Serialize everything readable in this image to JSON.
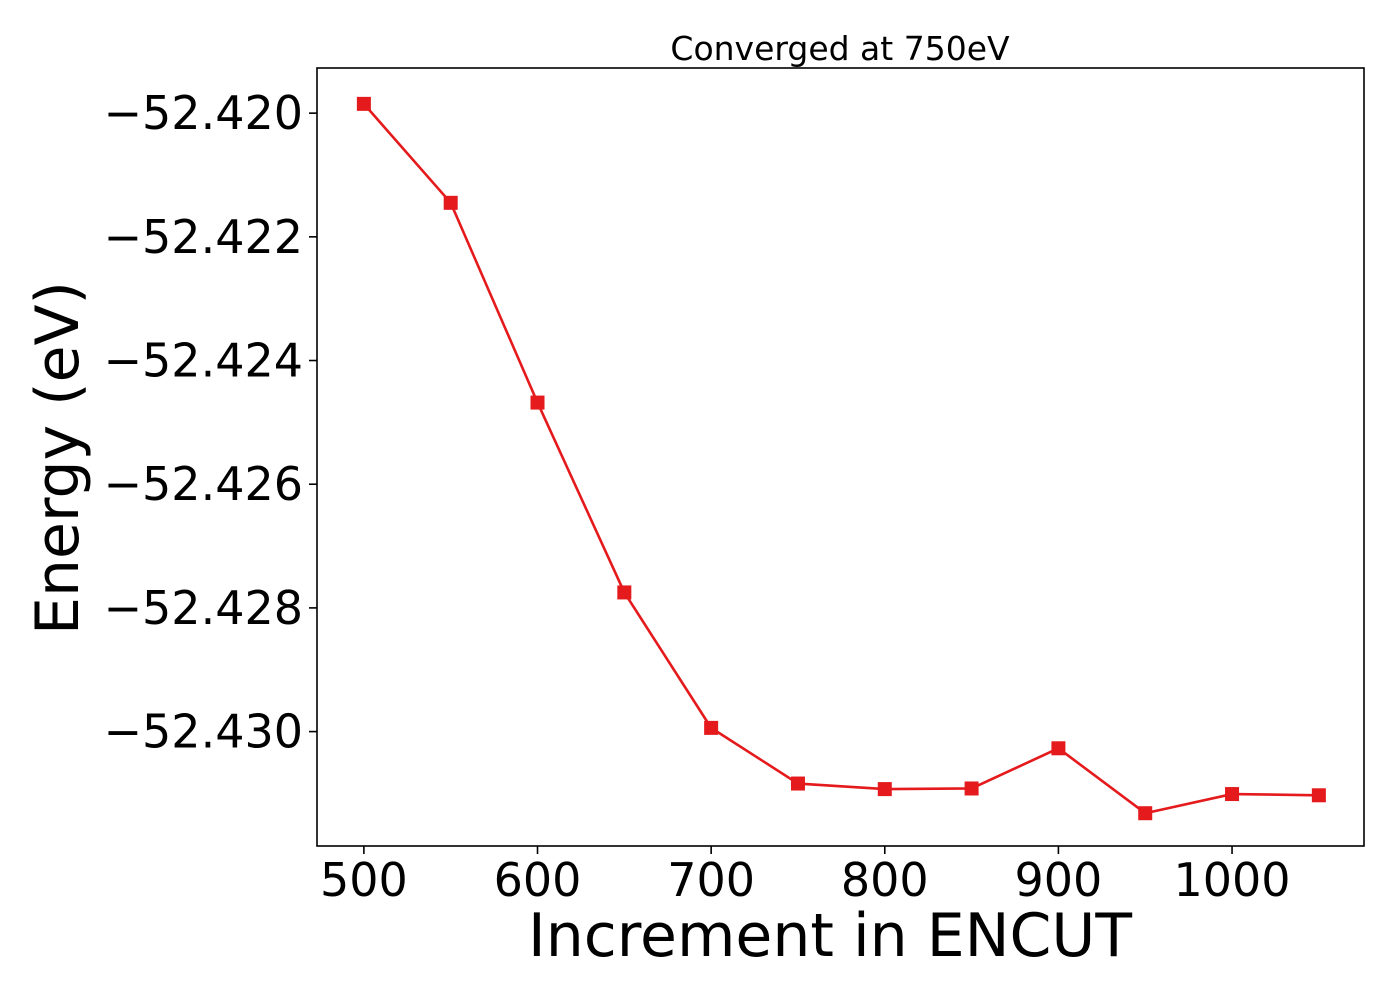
{
  "chart_data": {
    "type": "line",
    "title": "Converged at 750eV",
    "xlabel": "Increment in ENCUT",
    "ylabel": "Energy (eV)",
    "x": [
      500,
      550,
      600,
      650,
      700,
      750,
      800,
      850,
      900,
      950,
      1000,
      1050
    ],
    "series": [
      {
        "color": "#e41a1c",
        "marker": "square",
        "values": [
          -52.41985,
          -52.42145,
          -52.42468,
          -52.42775,
          -52.42994,
          -52.43084,
          -52.43093,
          -52.43092,
          -52.43027,
          -52.43132,
          -52.43101,
          -52.43103
        ]
      }
    ],
    "xlim": [
      473,
      1076
    ],
    "ylim": [
      -52.43185,
      -52.41927
    ],
    "xticks": [
      500,
      600,
      700,
      800,
      900,
      1000
    ],
    "xtick_labels": [
      "500",
      "600",
      "700",
      "800",
      "900",
      "1000"
    ],
    "yticks": [
      -52.42,
      -52.422,
      -52.424,
      -52.426,
      -52.428,
      -52.43
    ],
    "ytick_labels": [
      "−52.420",
      "−52.422",
      "−52.424",
      "−52.426",
      "−52.428",
      "−52.430"
    ],
    "grid": false,
    "legend": "none"
  }
}
